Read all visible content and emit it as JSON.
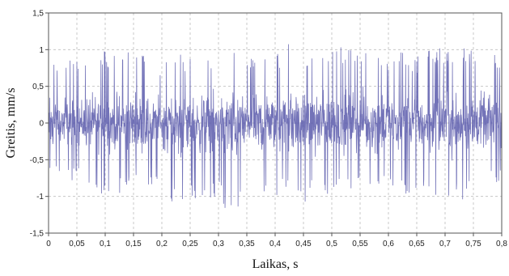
{
  "chart_data": {
    "type": "line",
    "xlabel": "Laikas, s",
    "ylabel": "Greitis, mm/s",
    "xlim": [
      0,
      0.8
    ],
    "ylim": [
      -1.5,
      1.5
    ],
    "x_ticks": [
      {
        "value": 0,
        "label": "0"
      },
      {
        "value": 0.05,
        "label": "0,05"
      },
      {
        "value": 0.1,
        "label": "0,1"
      },
      {
        "value": 0.15,
        "label": "0,15"
      },
      {
        "value": 0.2,
        "label": "0,2"
      },
      {
        "value": 0.25,
        "label": "0,25"
      },
      {
        "value": 0.3,
        "label": "0,3"
      },
      {
        "value": 0.35,
        "label": "0,35"
      },
      {
        "value": 0.4,
        "label": "0,4"
      },
      {
        "value": 0.45,
        "label": "0,45"
      },
      {
        "value": 0.5,
        "label": "0,5"
      },
      {
        "value": 0.55,
        "label": "0,55"
      },
      {
        "value": 0.6,
        "label": "0,6"
      },
      {
        "value": 0.65,
        "label": "0,65"
      },
      {
        "value": 0.7,
        "label": "0,7"
      },
      {
        "value": 0.75,
        "label": "0,75"
      },
      {
        "value": 0.8,
        "label": "0,8"
      }
    ],
    "y_ticks": [
      {
        "value": 1.5,
        "label": "1,5"
      },
      {
        "value": 1,
        "label": "1"
      },
      {
        "value": 0.5,
        "label": "0,5"
      },
      {
        "value": 0,
        "label": "0"
      },
      {
        "value": -0.5,
        "label": "-0,5"
      },
      {
        "value": -1,
        "label": "-1"
      },
      {
        "value": -1.5,
        "label": "-1,5"
      }
    ],
    "grid": true,
    "series_color": "#5b5bab",
    "series": [
      {
        "x": [
          0,
          0.025,
          0.05,
          0.075,
          0.1,
          0.125,
          0.15,
          0.175,
          0.2,
          0.225,
          0.25,
          0.275,
          0.3,
          0.325,
          0.35,
          0.375,
          0.4,
          0.425,
          0.45,
          0.475,
          0.5,
          0.525,
          0.55,
          0.575,
          0.6,
          0.625,
          0.65,
          0.675,
          0.7,
          0.725,
          0.75,
          0.775,
          0.8
        ],
        "max": [
          0.95,
          0.8,
          0.9,
          0.95,
          1.0,
          0.95,
          1.0,
          0.95,
          0.85,
          0.95,
          0.9,
          0.95,
          1.0,
          1.0,
          0.9,
          1.0,
          0.95,
          1.1,
          0.95,
          0.95,
          1.0,
          1.1,
          1.05,
          1.0,
          0.95,
          1.0,
          0.9,
          1.0,
          1.05,
          1.0,
          1.05,
          0.95,
          0.95
        ],
        "min": [
          -0.7,
          -0.75,
          -0.8,
          -0.9,
          -1.05,
          -1.0,
          -0.9,
          -0.95,
          -0.85,
          -1.25,
          -1.1,
          -1.0,
          -1.05,
          -1.35,
          -0.9,
          -1.0,
          -1.0,
          -0.95,
          -1.1,
          -0.9,
          -1.0,
          -0.95,
          -0.95,
          -0.9,
          -0.95,
          -1.0,
          -0.9,
          -0.95,
          -1.05,
          -1.1,
          -0.95,
          -0.8,
          -0.85
        ]
      }
    ]
  }
}
